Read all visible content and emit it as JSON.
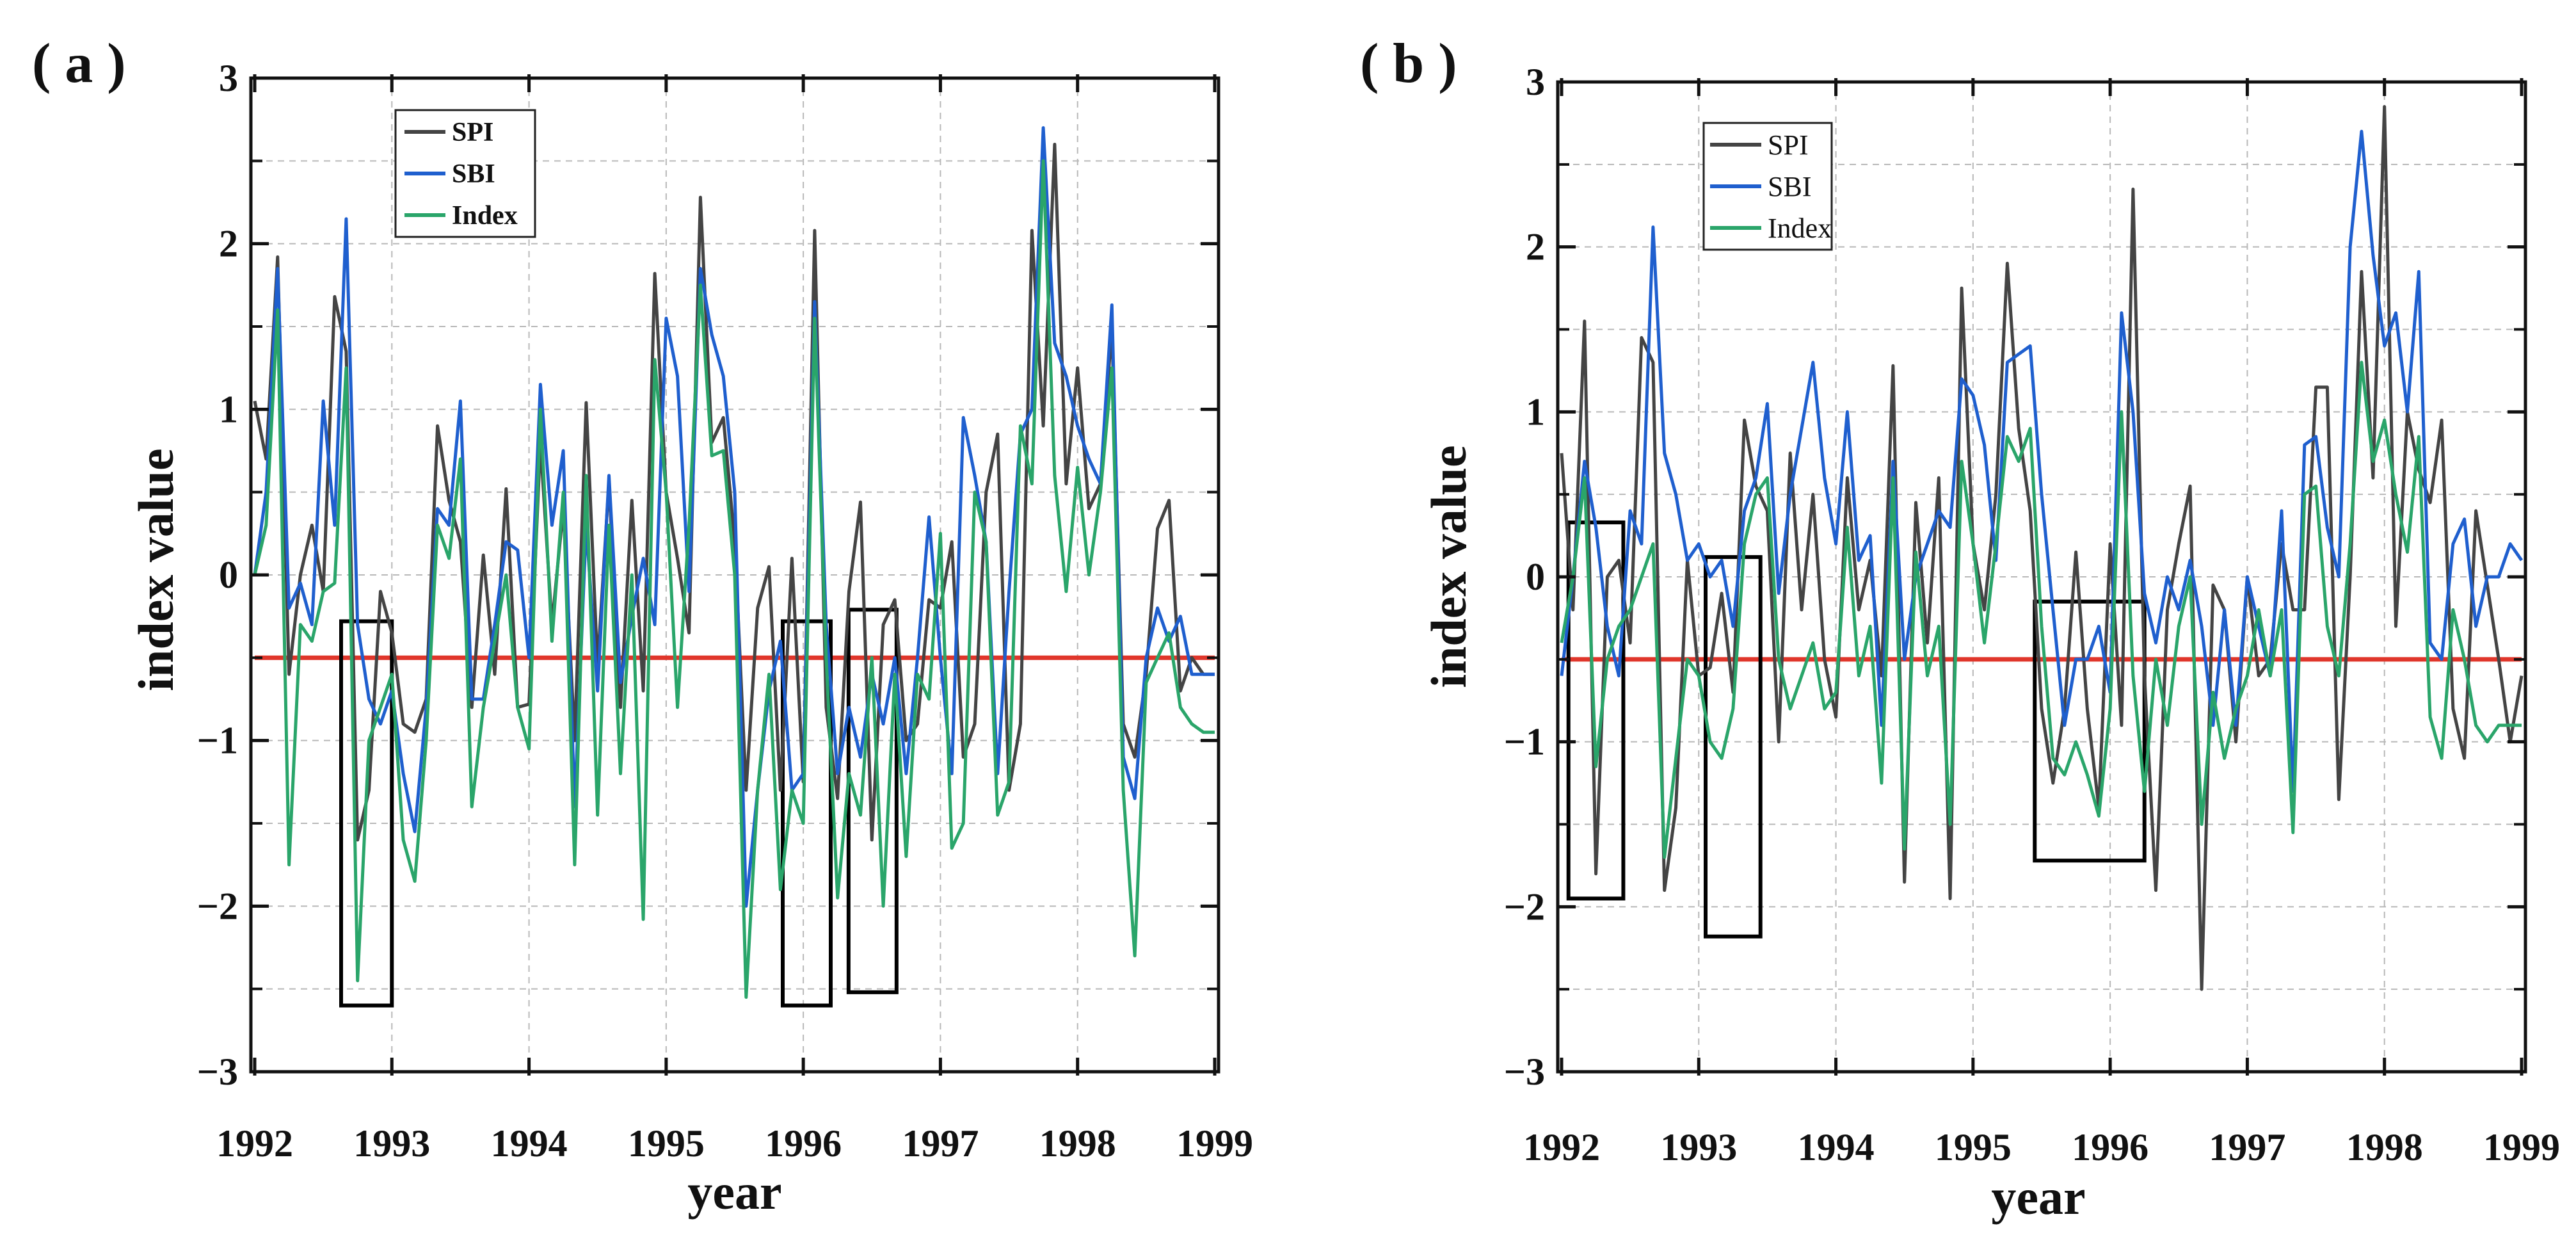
{
  "colors": {
    "SPI": "#444444",
    "SBI": "#1f5fce",
    "Index": "#2aa56a",
    "threshold": "#e0362b",
    "grid": "#b8b8b8",
    "box": "#000000"
  },
  "chart_data": [
    {
      "type": "line",
      "panel_label": "( a )",
      "xlabel": "year",
      "ylabel": "index value",
      "xlim": [
        1992,
        1999
      ],
      "ylim": [
        -3,
        3
      ],
      "x_ticks": [
        "1992",
        "1993",
        "1994",
        "1995",
        "1996",
        "1997",
        "1998",
        "1999"
      ],
      "y_ticks": [
        "3",
        "2",
        "1",
        "0",
        "−1",
        "−2",
        "−3"
      ],
      "threshold": -0.5,
      "grid": true,
      "legend_placement": "top-left",
      "x": [
        1992.0,
        1992.083,
        1992.167,
        1992.25,
        1992.333,
        1992.417,
        1992.5,
        1992.583,
        1992.667,
        1992.75,
        1992.833,
        1992.917,
        1993.0,
        1993.083,
        1993.167,
        1993.25,
        1993.333,
        1993.417,
        1993.5,
        1993.583,
        1993.667,
        1993.75,
        1993.833,
        1993.917,
        1994.0,
        1994.083,
        1994.167,
        1994.25,
        1994.333,
        1994.417,
        1994.5,
        1994.583,
        1994.667,
        1994.75,
        1994.833,
        1994.917,
        1995.0,
        1995.083,
        1995.167,
        1995.25,
        1995.333,
        1995.417,
        1995.5,
        1995.583,
        1995.667,
        1995.75,
        1995.833,
        1995.917,
        1996.0,
        1996.083,
        1996.167,
        1996.25,
        1996.333,
        1996.417,
        1996.5,
        1996.583,
        1996.667,
        1996.75,
        1996.833,
        1996.917,
        1997.0,
        1997.083,
        1997.167,
        1997.25,
        1997.333,
        1997.417,
        1997.5,
        1997.583,
        1997.667,
        1997.75,
        1997.833,
        1997.917,
        1998.0,
        1998.083,
        1998.167,
        1998.25,
        1998.333,
        1998.417,
        1998.5,
        1998.583,
        1998.667,
        1998.75,
        1998.833,
        1998.917,
        1999.0
      ],
      "series": [
        {
          "name": "SPI",
          "values": [
            1.05,
            0.7,
            1.92,
            -0.6,
            0.0,
            0.3,
            -0.1,
            1.68,
            1.35,
            -1.6,
            -1.3,
            -0.1,
            -0.35,
            -0.9,
            -0.95,
            -0.75,
            0.9,
            0.45,
            0.2,
            -0.8,
            0.12,
            -0.6,
            0.52,
            -0.8,
            -0.78,
            0.8,
            -0.3,
            0.4,
            -1.0,
            1.04,
            -0.55,
            0.56,
            -0.8,
            0.45,
            -0.7,
            1.82,
            0.5,
            0.1,
            -0.35,
            2.28,
            0.8,
            0.95,
            0.2,
            -1.3,
            -0.2,
            0.05,
            -1.3,
            0.1,
            -1.25,
            2.08,
            -0.8,
            -1.35,
            -0.1,
            0.44,
            -1.6,
            -0.3,
            -0.15,
            -1.0,
            -0.9,
            -0.15,
            -0.2,
            0.2,
            -1.1,
            -0.9,
            0.5,
            0.85,
            -1.3,
            -0.9,
            2.08,
            0.9,
            2.6,
            0.55,
            1.25,
            0.4,
            0.55,
            1.5,
            -0.9,
            -1.1,
            -0.6,
            0.28,
            0.45,
            -0.7,
            -0.5,
            -0.6,
            -0.6
          ]
        },
        {
          "name": "SBI",
          "values": [
            0.0,
            0.5,
            1.85,
            -0.2,
            -0.05,
            -0.3,
            1.05,
            0.3,
            2.15,
            -0.3,
            -0.75,
            -0.9,
            -0.7,
            -1.2,
            -1.55,
            -0.8,
            0.4,
            0.3,
            1.05,
            -0.75,
            -0.75,
            -0.3,
            0.2,
            0.15,
            -0.5,
            1.15,
            0.3,
            0.75,
            -1.4,
            0.3,
            -0.7,
            0.6,
            -0.65,
            -0.25,
            0.1,
            -0.3,
            1.55,
            1.2,
            -0.1,
            1.85,
            1.45,
            1.2,
            0.5,
            -2.0,
            -1.3,
            -0.7,
            -0.4,
            -1.3,
            -1.2,
            1.65,
            -0.3,
            -1.2,
            -0.8,
            -1.1,
            -0.6,
            -0.9,
            -0.5,
            -1.2,
            -0.5,
            0.35,
            -0.5,
            -1.2,
            0.95,
            0.6,
            0.2,
            -1.2,
            -0.1,
            0.85,
            1.0,
            2.7,
            1.4,
            1.2,
            0.9,
            0.7,
            0.55,
            1.63,
            -1.1,
            -1.35,
            -0.5,
            -0.2,
            -0.4,
            -0.25,
            -0.6,
            -0.6,
            -0.6
          ]
        },
        {
          "name": "Index",
          "values": [
            0.0,
            0.3,
            1.6,
            -1.75,
            -0.3,
            -0.4,
            -0.1,
            -0.05,
            1.25,
            -2.45,
            -1.0,
            -0.8,
            -0.6,
            -1.6,
            -1.85,
            -1.0,
            0.3,
            0.1,
            0.7,
            -1.4,
            -0.8,
            -0.4,
            0.0,
            -0.8,
            -1.05,
            1.0,
            -0.4,
            0.5,
            -1.75,
            0.6,
            -1.45,
            0.3,
            -1.2,
            0.0,
            -2.08,
            1.3,
            0.5,
            -0.8,
            0.3,
            1.75,
            0.72,
            0.75,
            0.0,
            -2.55,
            -1.3,
            -0.6,
            -1.9,
            -1.3,
            -1.5,
            1.55,
            -0.5,
            -1.95,
            -1.2,
            -1.45,
            -0.5,
            -2.0,
            -0.6,
            -1.7,
            -0.6,
            -0.75,
            0.25,
            -1.65,
            -1.5,
            0.5,
            0.2,
            -1.45,
            -1.25,
            0.9,
            0.55,
            2.5,
            0.6,
            -0.1,
            0.65,
            0.0,
            0.5,
            1.25,
            -1.3,
            -2.3,
            -0.65,
            -0.5,
            -0.35,
            -0.8,
            -0.9,
            -0.95,
            -0.95
          ]
        }
      ],
      "boxes": [
        {
          "x0": 1992.63,
          "x1": 1993.0,
          "y0": -2.6,
          "y1": -0.28
        },
        {
          "x0": 1995.85,
          "x1": 1996.2,
          "y0": -2.6,
          "y1": -0.28
        },
        {
          "x0": 1996.33,
          "x1": 1996.68,
          "y0": -2.52,
          "y1": -0.21
        }
      ]
    },
    {
      "type": "line",
      "panel_label": "( b )",
      "xlabel": "year",
      "ylabel": "index value",
      "xlim": [
        1992,
        1999
      ],
      "ylim": [
        -3,
        3
      ],
      "x_ticks": [
        "1992",
        "1993",
        "1994",
        "1995",
        "1996",
        "1997",
        "1998",
        "1999"
      ],
      "y_ticks": [
        "3",
        "2",
        "1",
        "0",
        "−1",
        "−2",
        "−3"
      ],
      "threshold": -0.5,
      "grid": true,
      "legend_placement": "top-left",
      "x": [
        1992.0,
        1992.083,
        1992.167,
        1992.25,
        1992.333,
        1992.417,
        1992.5,
        1992.583,
        1992.667,
        1992.75,
        1992.833,
        1992.917,
        1993.0,
        1993.083,
        1993.167,
        1993.25,
        1993.333,
        1993.417,
        1993.5,
        1993.583,
        1993.667,
        1993.75,
        1993.833,
        1993.917,
        1994.0,
        1994.083,
        1994.167,
        1994.25,
        1994.333,
        1994.417,
        1994.5,
        1994.583,
        1994.667,
        1994.75,
        1994.833,
        1994.917,
        1995.0,
        1995.083,
        1995.167,
        1995.25,
        1995.333,
        1995.417,
        1995.5,
        1995.583,
        1995.667,
        1995.75,
        1995.833,
        1995.917,
        1996.0,
        1996.083,
        1996.167,
        1996.25,
        1996.333,
        1996.417,
        1996.5,
        1996.583,
        1996.667,
        1996.75,
        1996.833,
        1996.917,
        1997.0,
        1997.083,
        1997.167,
        1997.25,
        1997.333,
        1997.417,
        1997.5,
        1997.583,
        1997.667,
        1997.75,
        1997.833,
        1997.917,
        1998.0,
        1998.083,
        1998.167,
        1998.25,
        1998.333,
        1998.417,
        1998.5,
        1998.583,
        1998.667,
        1998.75,
        1998.833,
        1998.917,
        1999.0
      ],
      "series": [
        {
          "name": "SPI",
          "values": [
            0.75,
            -0.2,
            1.55,
            -1.8,
            0.0,
            0.1,
            -0.4,
            1.45,
            1.3,
            -1.9,
            -1.4,
            0.1,
            -0.6,
            -0.55,
            -0.1,
            -0.7,
            0.95,
            0.55,
            0.4,
            -1.0,
            0.75,
            -0.2,
            0.5,
            -0.5,
            -0.85,
            0.6,
            -0.2,
            0.1,
            -0.6,
            1.28,
            -1.85,
            0.45,
            -0.4,
            0.6,
            -1.95,
            1.75,
            0.2,
            -0.2,
            0.5,
            1.9,
            0.9,
            0.4,
            -0.8,
            -1.25,
            -0.8,
            0.15,
            -0.8,
            -1.4,
            0.2,
            -0.9,
            2.35,
            -0.6,
            -1.9,
            -0.2,
            0.2,
            0.55,
            -2.5,
            -0.05,
            -0.2,
            -1.0,
            0.0,
            -0.6,
            -0.5,
            0.2,
            -0.2,
            -0.2,
            1.15,
            1.15,
            -1.35,
            0.0,
            1.85,
            0.6,
            2.85,
            -0.3,
            1.0,
            0.65,
            0.45,
            0.95,
            -0.8,
            -1.1,
            0.4,
            -0.05,
            -0.5,
            -1.0,
            -0.6
          ]
        },
        {
          "name": "SBI",
          "values": [
            -0.6,
            0.0,
            0.7,
            0.3,
            -0.3,
            -0.6,
            0.4,
            0.2,
            2.12,
            0.75,
            0.5,
            0.1,
            0.2,
            0.0,
            0.1,
            -0.3,
            0.4,
            0.6,
            1.05,
            -0.1,
            0.5,
            0.9,
            1.3,
            0.6,
            0.2,
            1.0,
            0.1,
            0.25,
            -0.9,
            0.7,
            -0.5,
            0.0,
            0.2,
            0.4,
            0.3,
            1.2,
            1.1,
            0.8,
            0.1,
            1.3,
            1.35,
            1.4,
            0.5,
            -0.2,
            -0.9,
            -0.5,
            -0.5,
            -0.3,
            -0.7,
            1.6,
            1.0,
            -0.1,
            -0.4,
            0.0,
            -0.2,
            0.1,
            -0.3,
            -0.9,
            -0.2,
            -0.9,
            0.0,
            -0.3,
            -0.6,
            0.4,
            -1.3,
            0.8,
            0.85,
            0.3,
            0.0,
            2.0,
            2.7,
            1.95,
            1.4,
            1.6,
            1.0,
            1.85,
            -0.4,
            -0.5,
            0.2,
            0.35,
            -0.3,
            0.0,
            0.0,
            0.2,
            0.1
          ]
        },
        {
          "name": "Index",
          "values": [
            -0.4,
            0.0,
            0.6,
            -1.15,
            -0.5,
            -0.3,
            -0.2,
            0.0,
            0.2,
            -1.7,
            -1.1,
            -0.5,
            -0.6,
            -1.0,
            -1.1,
            -0.8,
            0.2,
            0.5,
            0.6,
            -0.5,
            -0.8,
            -0.6,
            -0.4,
            -0.8,
            -0.7,
            0.3,
            -0.6,
            -0.3,
            -1.25,
            0.6,
            -1.65,
            0.15,
            -0.6,
            -0.3,
            -1.5,
            0.7,
            0.2,
            -0.4,
            0.2,
            0.85,
            0.7,
            0.9,
            -0.3,
            -1.1,
            -1.2,
            -1.0,
            -1.2,
            -1.45,
            -0.8,
            1.0,
            -0.6,
            -1.3,
            -0.5,
            -0.9,
            -0.3,
            0.0,
            -1.5,
            -0.7,
            -1.1,
            -0.8,
            -0.6,
            -0.2,
            -0.6,
            -0.2,
            -1.55,
            0.5,
            0.55,
            -0.3,
            -0.6,
            0.2,
            1.3,
            0.7,
            0.95,
            0.5,
            0.15,
            0.85,
            -0.85,
            -1.1,
            -0.2,
            -0.5,
            -0.9,
            -1.0,
            -0.9,
            -0.9,
            -0.9
          ]
        }
      ],
      "boxes": [
        {
          "x0": 1992.05,
          "x1": 1992.45,
          "y0": -1.95,
          "y1": 0.33
        },
        {
          "x0": 1993.05,
          "x1": 1993.45,
          "y0": -2.18,
          "y1": 0.12
        },
        {
          "x0": 1995.45,
          "x1": 1996.25,
          "y0": -1.72,
          "y1": -0.15
        }
      ]
    }
  ]
}
